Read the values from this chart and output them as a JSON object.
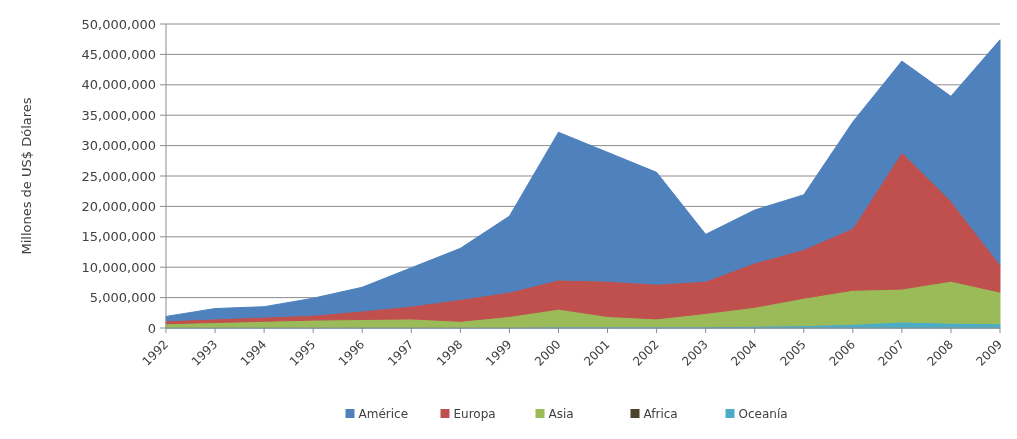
{
  "chart_data": {
    "type": "area",
    "stacked": true,
    "ylabel": "Millones de US$ Dólares",
    "categories": [
      "1992",
      "1993",
      "1994",
      "1995",
      "1996",
      "1997",
      "1998",
      "1999",
      "2000",
      "2001",
      "2002",
      "2003",
      "2004",
      "2005",
      "2006",
      "2007",
      "2008",
      "2009"
    ],
    "series": [
      {
        "name": "Oceanía",
        "color": "#4bacc6",
        "values": [
          100000,
          100000,
          100000,
          100000,
          100000,
          100000,
          100000,
          100000,
          200000,
          200000,
          200000,
          200000,
          300000,
          400000,
          600000,
          1000000,
          800000,
          700000
        ]
      },
      {
        "name": "Africa",
        "color": "#4a452a",
        "values": [
          null,
          null,
          null,
          null,
          null,
          null,
          null,
          null,
          null,
          null,
          null,
          null,
          null,
          null,
          null,
          null,
          null,
          null
        ]
      },
      {
        "name": "Asia",
        "color": "#9bbb59",
        "values": [
          600000,
          800000,
          1000000,
          1200000,
          1300000,
          1400000,
          1000000,
          1800000,
          2900000,
          1700000,
          1300000,
          2200000,
          3100000,
          4500000,
          5600000,
          5400000,
          6900000,
          5200000
        ]
      },
      {
        "name": "Europa",
        "color": "#c0504d",
        "values": [
          500000,
          600000,
          700000,
          800000,
          1400000,
          2100000,
          3600000,
          4000000,
          4800000,
          5800000,
          5700000,
          5300000,
          7300000,
          8000000,
          10200000,
          22500000,
          13200000,
          4500000
        ]
      },
      {
        "name": "Américe",
        "color": "#4f81bd",
        "values": [
          700000,
          1700000,
          1700000,
          2800000,
          3900000,
          6300000,
          8400000,
          12500000,
          24300000,
          21200000,
          18400000,
          7700000,
          8700000,
          9000000,
          17500000,
          15000000,
          17200000,
          37000000
        ]
      }
    ],
    "ylim": [
      0,
      50000000
    ],
    "yticks": [
      {
        "value": 0,
        "label": "0"
      },
      {
        "value": 5000000,
        "label": "5,000,000"
      },
      {
        "value": 10000000,
        "label": "10,000,000"
      },
      {
        "value": 15000000,
        "label": "15,000,000"
      },
      {
        "value": 20000000,
        "label": "20,000,000"
      },
      {
        "value": 25000000,
        "label": "25,000,000"
      },
      {
        "value": 30000000,
        "label": "30,000,000"
      },
      {
        "value": 35000000,
        "label": "35,000,000"
      },
      {
        "value": 40000000,
        "label": "40,000,000"
      },
      {
        "value": 45000000,
        "label": "45,000,000"
      },
      {
        "value": 50000000,
        "label": "50,000,000"
      }
    ],
    "grid": "y",
    "legend": "bottom"
  }
}
